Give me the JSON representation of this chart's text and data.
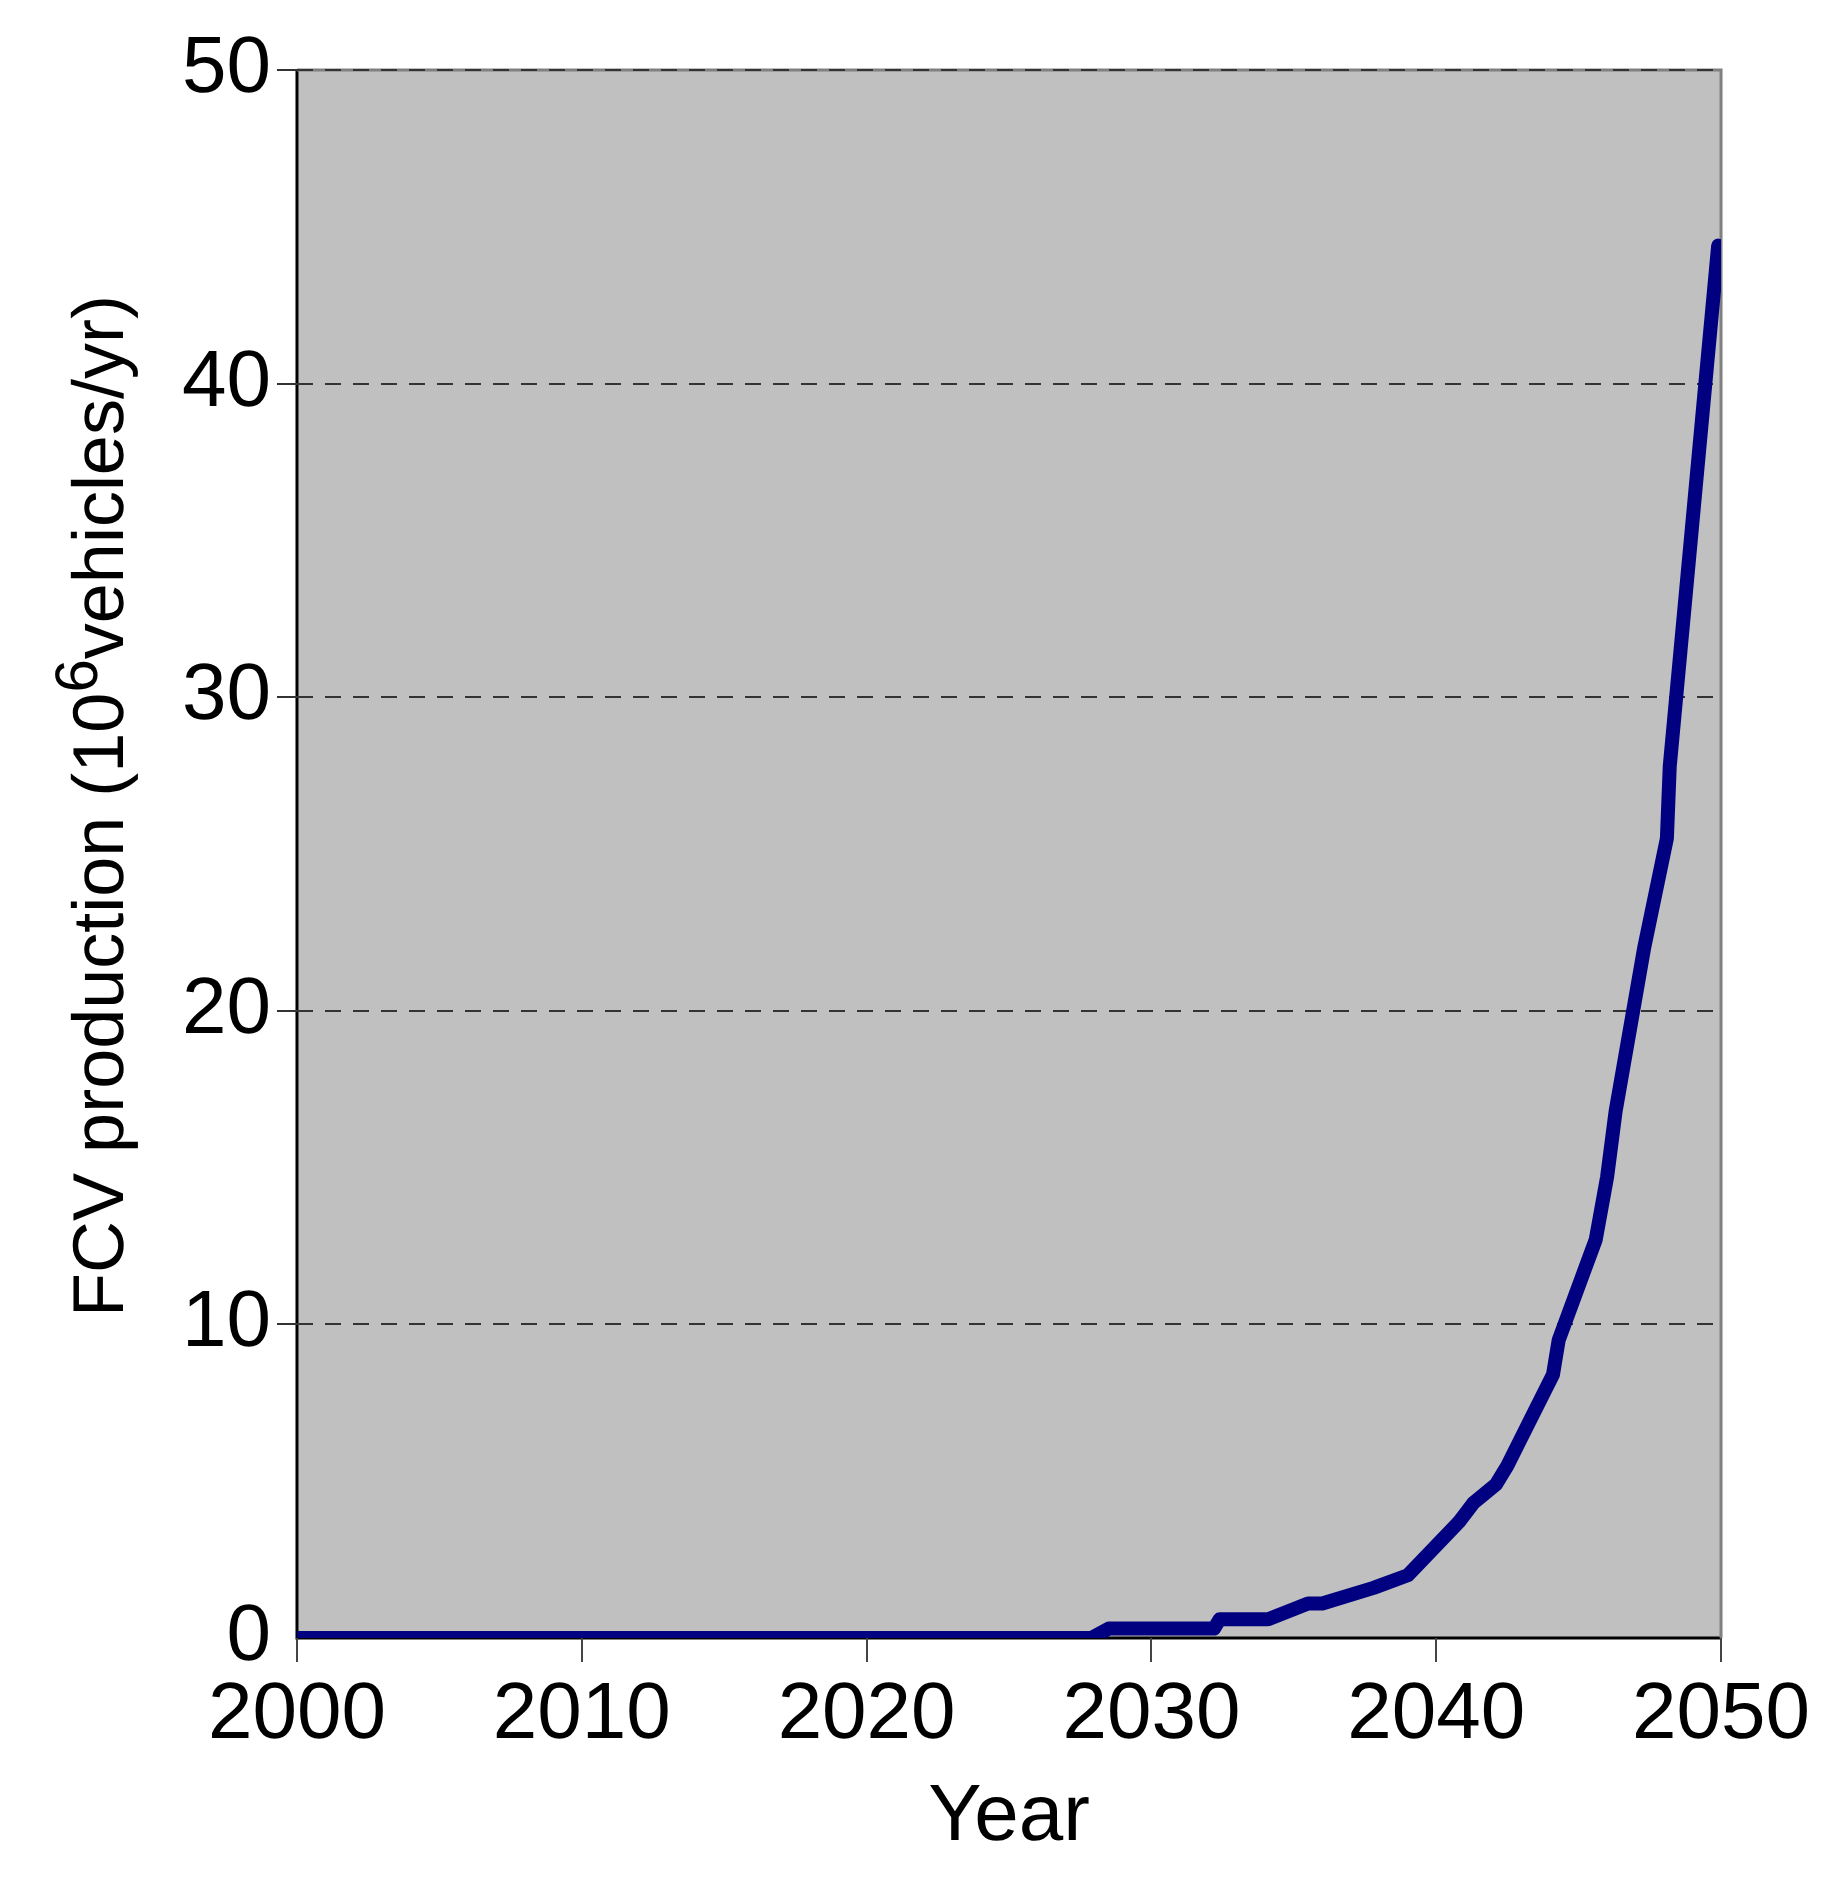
{
  "chart_data": {
    "type": "line",
    "xlabel": "Year",
    "ylabel": "FCV production (10$^{6}$vehicles/yr)",
    "series": [
      {
        "color": "#000080",
        "x": [
          2000,
          2027.9,
          2028.5,
          2032.2,
          2032.4,
          2034.1,
          2035.5,
          2036,
          2037.8,
          2039,
          2040.8,
          2041.3,
          2042.1,
          2042.5,
          2044.1,
          2044.3,
          2045.6,
          2046,
          2046.3,
          2047.3,
          2048.1,
          2048.2,
          2049.9
        ],
        "values": [
          0,
          0,
          0.3,
          0.3,
          0.6,
          0.6,
          1.1,
          1.1,
          1.6,
          2.0,
          3.7,
          4.3,
          4.9,
          5.5,
          8.4,
          9.5,
          12.7,
          14.7,
          16.8,
          22.0,
          25.5,
          27.8,
          44.4
        ]
      }
    ],
    "xlim": [
      2000,
      2050
    ],
    "xticks": [
      2000,
      2010,
      2020,
      2030,
      2040,
      2050
    ],
    "ylim": [
      0,
      50
    ],
    "yticks": [
      0,
      10,
      20,
      30,
      40,
      50
    ],
    "grid": "y",
    "line_style": "solid",
    "marker": "none",
    "legend": false
  }
}
